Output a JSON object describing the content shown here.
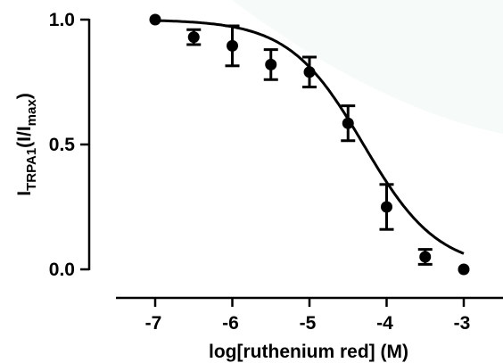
{
  "chart_data": {
    "type": "scatter",
    "xlabel": "log[ruthenium red] (M)",
    "ylabel": {
      "main": "I",
      "sub1": "TRPA1",
      "mid": "(I/I",
      "sub2": "max",
      "end": ")"
    },
    "xlim": [
      -7.5,
      -2.8
    ],
    "ylim": [
      0.0,
      1.0
    ],
    "xticks": [
      -7,
      -6,
      -5,
      -4,
      -3
    ],
    "xtick_labels": [
      "-7",
      "-6",
      "-5",
      "-4",
      "-3"
    ],
    "yticks": [
      0.0,
      0.5,
      1.0
    ],
    "ytick_labels": [
      "0.0",
      "0.5",
      "1.0"
    ],
    "grid": false,
    "legend": "none",
    "series": [
      {
        "points": [
          {
            "x": -7.0,
            "y": 1.0,
            "err": 0.0
          },
          {
            "x": -6.5,
            "y": 0.93,
            "err": 0.03
          },
          {
            "x": -6.0,
            "y": 0.895,
            "err": 0.08
          },
          {
            "x": -5.5,
            "y": 0.82,
            "err": 0.06
          },
          {
            "x": -5.0,
            "y": 0.79,
            "err": 0.06
          },
          {
            "x": -4.5,
            "y": 0.585,
            "err": 0.07
          },
          {
            "x": -4.0,
            "y": 0.25,
            "err": 0.09
          },
          {
            "x": -3.5,
            "y": 0.05,
            "err": 0.03
          },
          {
            "x": -3.0,
            "y": 0.0,
            "err": 0.0
          }
        ]
      }
    ],
    "fit": {
      "model": "sigmoidal dose-response",
      "top": 1.0,
      "bottom": 0.0,
      "logIC50": -4.3,
      "hill": 0.9
    }
  }
}
